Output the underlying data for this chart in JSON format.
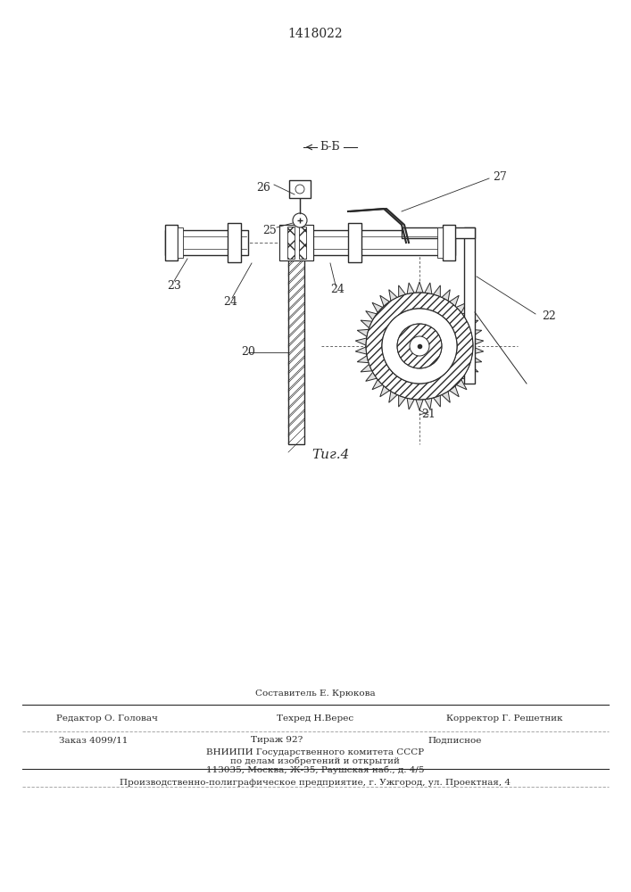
{
  "patent_number": "1418022",
  "fig_label": "Τиг.4",
  "background_color": "#ffffff",
  "line_color": "#2a2a2a",
  "footer_above": "Составитель Е. Крюкова",
  "footer_line1_left": "Редактор О. Головач",
  "footer_line1_center": "Техред Н.Верес",
  "footer_line1_right": "Корректор Г. Решетник",
  "footer_order": "Заказ 4099/11",
  "footer_tirazh": "Тираж 92?",
  "footer_podpisnoe": "Подписное",
  "footer_vniipи": "ВНИИПИ Государственного комитета СССР",
  "footer_po_delam": "по делам изобретений и открытий",
  "footer_address": "113035, Москва, Ж-35, Раушская наб., д. 4/5",
  "footer_production": "Производственно-полиграфическое предприятие, г. Ужгород, ул. Проектная, 4"
}
